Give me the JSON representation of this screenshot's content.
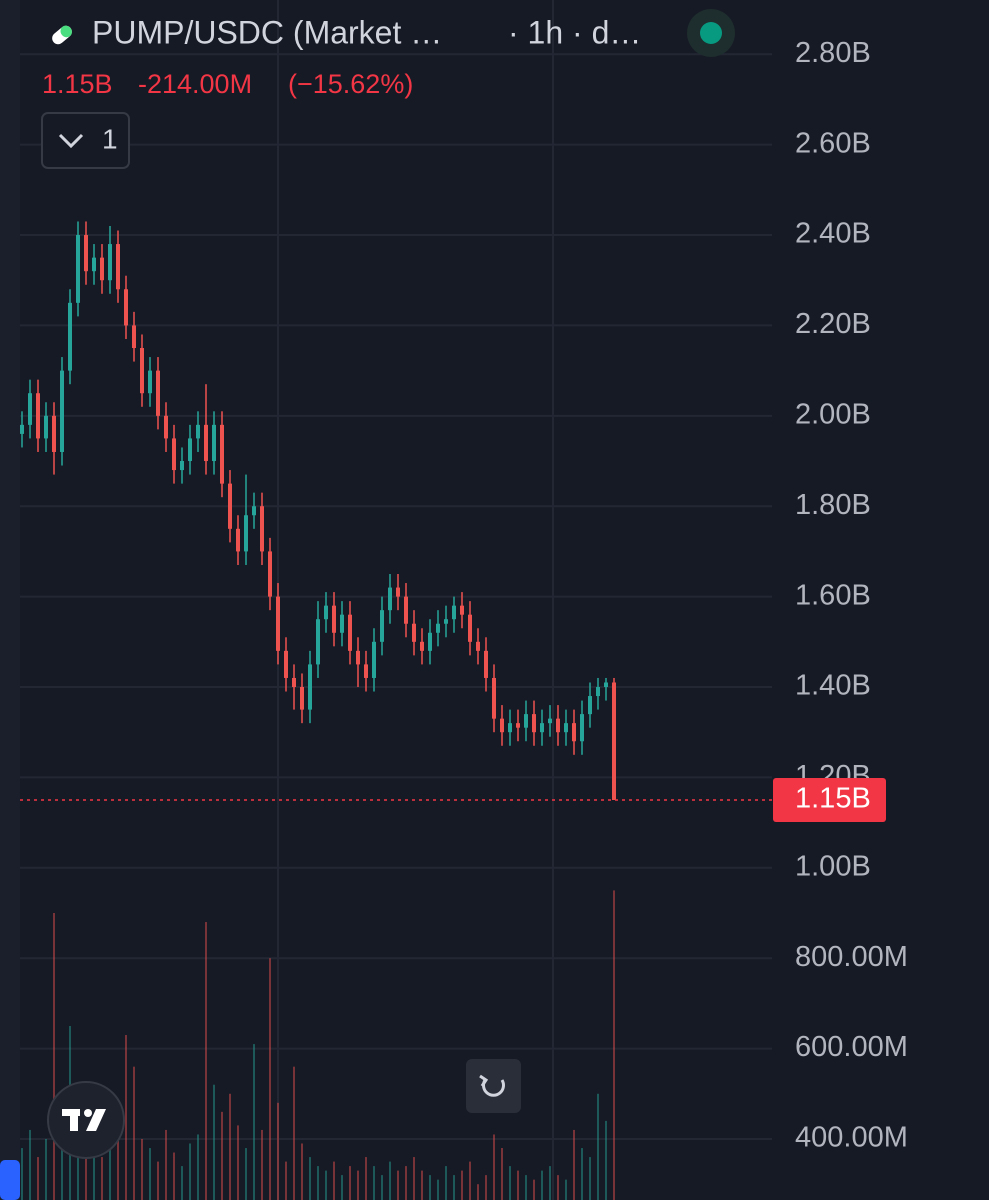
{
  "header": {
    "title": "PUMP/USDC (Market …",
    "interval": "· 1h · d…",
    "last": "1.15B",
    "change": "-214.00M",
    "change_pct": "(−15.62%)",
    "indicator_count": "1"
  },
  "chart_data": {
    "type": "candlestick",
    "up_color": "#26a69a",
    "down_color": "#ef5350",
    "ylim": [
      265,
      2920
    ],
    "yticks": [
      {
        "value": 2800,
        "label": "2.80B"
      },
      {
        "value": 2600,
        "label": "2.60B"
      },
      {
        "value": 2400,
        "label": "2.40B"
      },
      {
        "value": 2200,
        "label": "2.20B"
      },
      {
        "value": 2000,
        "label": "2.00B"
      },
      {
        "value": 1800,
        "label": "1.80B"
      },
      {
        "value": 1600,
        "label": "1.60B"
      },
      {
        "value": 1400,
        "label": "1.40B"
      },
      {
        "value": 1200,
        "label": "1.20B"
      },
      {
        "value": 1000,
        "label": "1.00B"
      },
      {
        "value": 800,
        "label": "800.00M"
      },
      {
        "value": 600,
        "label": "600.00M"
      },
      {
        "value": 400,
        "label": "400.00M"
      }
    ],
    "grid": true,
    "last_price": {
      "value": 1150,
      "label": "1.15B"
    },
    "open": [
      1960,
      1980,
      2050,
      1950,
      2000,
      1920,
      2100,
      2250,
      2400,
      2320,
      2350,
      2300,
      2380,
      2280,
      2200,
      2150,
      2050,
      2100,
      2000,
      1950,
      1880,
      1900,
      1950,
      1980,
      1900,
      1980,
      1850,
      1750,
      1700,
      1780,
      1800,
      1700,
      1600,
      1480,
      1420,
      1400,
      1350,
      1450,
      1550,
      1580,
      1520,
      1560,
      1480,
      1450,
      1420,
      1500,
      1570,
      1620,
      1600,
      1540,
      1500,
      1480,
      1520,
      1540,
      1550,
      1580,
      1560,
      1500,
      1480,
      1420,
      1330,
      1300,
      1320,
      1310,
      1340,
      1300,
      1320,
      1330,
      1300,
      1320,
      1280,
      1340,
      1380,
      1400,
      1410
    ],
    "high": [
      2010,
      2080,
      2080,
      2030,
      2030,
      2130,
      2280,
      2430,
      2430,
      2380,
      2380,
      2420,
      2410,
      2310,
      2230,
      2180,
      2130,
      2130,
      2030,
      1980,
      1930,
      1980,
      2010,
      2070,
      2010,
      2010,
      1880,
      1780,
      1870,
      1830,
      1830,
      1730,
      1630,
      1510,
      1450,
      1430,
      1480,
      1590,
      1610,
      1610,
      1590,
      1590,
      1510,
      1480,
      1530,
      1600,
      1650,
      1650,
      1630,
      1570,
      1530,
      1550,
      1570,
      1580,
      1600,
      1610,
      1590,
      1530,
      1510,
      1450,
      1360,
      1350,
      1350,
      1370,
      1370,
      1350,
      1360,
      1360,
      1350,
      1350,
      1370,
      1410,
      1420,
      1420,
      1420
    ],
    "low": [
      1930,
      1950,
      1920,
      1920,
      1870,
      1890,
      2070,
      2220,
      2290,
      2290,
      2270,
      2270,
      2250,
      2170,
      2120,
      2020,
      2020,
      1970,
      1920,
      1850,
      1850,
      1870,
      1920,
      1870,
      1870,
      1820,
      1720,
      1670,
      1670,
      1750,
      1670,
      1570,
      1450,
      1390,
      1350,
      1320,
      1320,
      1420,
      1520,
      1490,
      1490,
      1450,
      1400,
      1390,
      1390,
      1470,
      1540,
      1570,
      1510,
      1470,
      1450,
      1450,
      1490,
      1510,
      1520,
      1530,
      1470,
      1450,
      1390,
      1300,
      1270,
      1270,
      1280,
      1280,
      1270,
      1270,
      1290,
      1270,
      1270,
      1250,
      1250,
      1310,
      1350,
      1370,
      1150
    ],
    "close": [
      1980,
      2050,
      1950,
      2000,
      1920,
      2100,
      2250,
      2400,
      2320,
      2350,
      2300,
      2380,
      2280,
      2200,
      2150,
      2050,
      2100,
      2000,
      1950,
      1880,
      1900,
      1950,
      1980,
      1900,
      1980,
      1850,
      1750,
      1700,
      1780,
      1800,
      1700,
      1600,
      1480,
      1420,
      1400,
      1350,
      1450,
      1550,
      1580,
      1520,
      1560,
      1480,
      1450,
      1420,
      1500,
      1570,
      1620,
      1600,
      1540,
      1500,
      1480,
      1520,
      1540,
      1550,
      1580,
      1560,
      1500,
      1480,
      1420,
      1330,
      1300,
      1320,
      1310,
      1340,
      1300,
      1320,
      1330,
      1300,
      1320,
      1280,
      1340,
      1380,
      1400,
      1410,
      1150
    ],
    "volume": [
      380,
      420,
      360,
      400,
      900,
      410,
      650,
      470,
      440,
      390,
      360,
      380,
      420,
      630,
      560,
      400,
      380,
      350,
      420,
      370,
      340,
      390,
      410,
      880,
      520,
      460,
      500,
      430,
      380,
      610,
      420,
      800,
      480,
      350,
      560,
      390,
      360,
      340,
      330,
      350,
      320,
      340,
      330,
      360,
      340,
      320,
      350,
      330,
      340,
      360,
      330,
      320,
      310,
      340,
      320,
      330,
      350,
      300,
      320,
      410,
      380,
      340,
      330,
      320,
      310,
      330,
      340,
      320,
      310,
      420,
      380,
      360,
      500,
      440,
      950
    ]
  }
}
